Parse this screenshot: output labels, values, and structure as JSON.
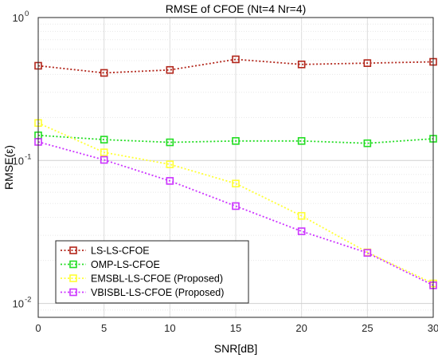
{
  "chart_data": {
    "type": "line",
    "title": "RMSE of CFOE (Nt=4 Nr=4)",
    "xlabel": "SNR[dB]",
    "ylabel": "RMSE(ε)",
    "x": [
      0,
      5,
      10,
      15,
      20,
      25,
      30
    ],
    "xlim": [
      0,
      30
    ],
    "ylim": [
      0.008,
      1
    ],
    "yscale": "log",
    "xticks": [
      "0",
      "5",
      "10",
      "15",
      "20",
      "25",
      "30"
    ],
    "yticks": [
      {
        "base": "10",
        "exp": "0",
        "value": 1
      },
      {
        "base": "10",
        "exp": "-1",
        "value": 0.1
      },
      {
        "base": "10",
        "exp": "-2",
        "value": 0.01
      }
    ],
    "grid": true,
    "legend_position": "bottom-left",
    "series": [
      {
        "name": "LS-LS-CFOE",
        "color": "#b2261b",
        "marker": "square",
        "values": [
          0.46,
          0.41,
          0.43,
          0.51,
          0.47,
          0.48,
          0.49
        ]
      },
      {
        "name": "OMP-LS-CFOE",
        "color": "#22dd22",
        "marker": "square",
        "values": [
          0.15,
          0.14,
          0.134,
          0.137,
          0.137,
          0.132,
          0.142
        ]
      },
      {
        "name": "EMSBL-LS-CFOE (Proposed)",
        "color": "#ffff33",
        "marker": "square",
        "values": [
          0.183,
          0.114,
          0.094,
          0.069,
          0.041,
          0.0228,
          0.0138
        ]
      },
      {
        "name": "VBISBL-LS-CFOE (Proposed)",
        "color": "#cc33ff",
        "marker": "square",
        "values": [
          0.135,
          0.101,
          0.072,
          0.048,
          0.032,
          0.0226,
          0.0134
        ]
      }
    ]
  }
}
